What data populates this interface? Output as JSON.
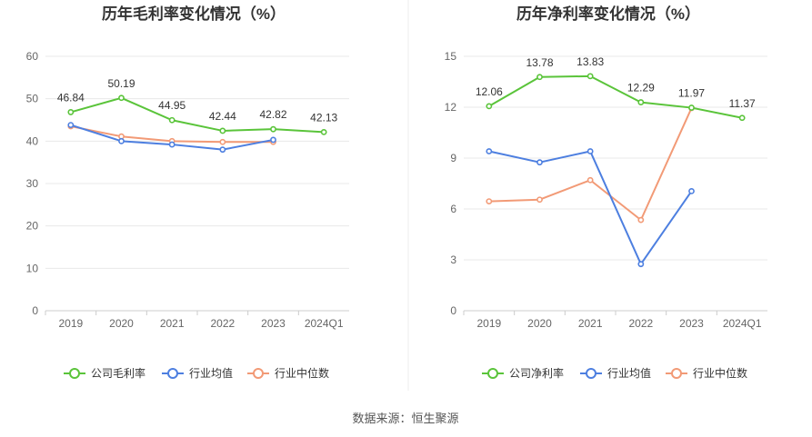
{
  "chart_data": [
    {
      "type": "line",
      "title": "历年毛利率变化情况（%）",
      "categories": [
        "2019",
        "2020",
        "2021",
        "2022",
        "2023",
        "2024Q1"
      ],
      "yticks": [
        "0",
        "10",
        "20",
        "30",
        "40",
        "50",
        "60"
      ],
      "ylim": [
        0,
        60
      ],
      "grid": true,
      "legend_position": "bottom",
      "series": [
        {
          "name": "公司毛利率",
          "color": "#5ac43a",
          "values": [
            46.84,
            50.19,
            44.95,
            42.44,
            42.82,
            42.13
          ],
          "labels": [
            "46.84",
            "50.19",
            "44.95",
            "42.44",
            "42.82",
            "42.13"
          ]
        },
        {
          "name": "行业均值",
          "color": "#4d7fe0",
          "values": [
            43.8,
            40.0,
            39.2,
            38.0,
            40.3,
            null
          ]
        },
        {
          "name": "行业中位数",
          "color": "#f29a76",
          "values": [
            43.5,
            41.1,
            40.0,
            39.8,
            39.8,
            null
          ]
        }
      ]
    },
    {
      "type": "line",
      "title": "历年净利率变化情况（%）",
      "categories": [
        "2019",
        "2020",
        "2021",
        "2022",
        "2023",
        "2024Q1"
      ],
      "yticks": [
        "0",
        "3",
        "6",
        "9",
        "12",
        "15"
      ],
      "ylim": [
        0,
        15
      ],
      "grid": true,
      "legend_position": "bottom",
      "series": [
        {
          "name": "公司净利率",
          "color": "#5ac43a",
          "values": [
            12.06,
            13.78,
            13.83,
            12.29,
            11.97,
            11.37
          ],
          "labels": [
            "12.06",
            "13.78",
            "13.83",
            "12.29",
            "11.97",
            "11.37"
          ]
        },
        {
          "name": "行业均值",
          "color": "#4d7fe0",
          "values": [
            9.4,
            8.75,
            9.4,
            2.75,
            7.05,
            null
          ]
        },
        {
          "name": "行业中位数",
          "color": "#f29a76",
          "values": [
            6.45,
            6.55,
            7.7,
            5.35,
            11.95,
            null
          ]
        }
      ]
    }
  ],
  "source": "数据来源：恒生聚源"
}
